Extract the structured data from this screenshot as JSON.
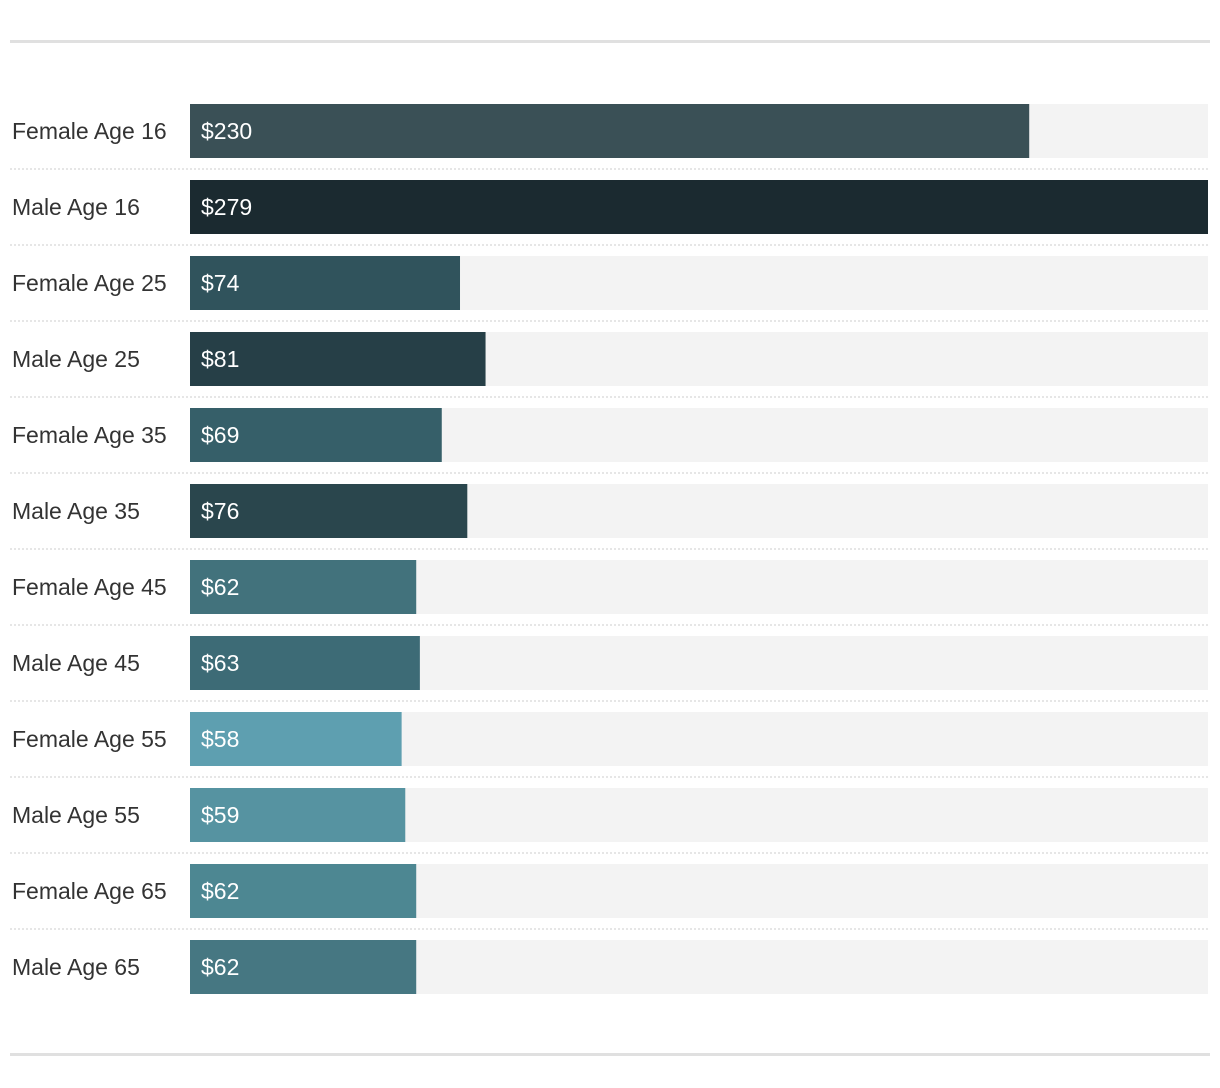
{
  "chart_data": {
    "type": "bar",
    "orientation": "horizontal",
    "categories": [
      "Female Age 16",
      "Male Age 16",
      "Female Age 25",
      "Male Age 25",
      "Female Age 35",
      "Male Age 35",
      "Female Age 45",
      "Male Age 45",
      "Female Age 55",
      "Male Age 55",
      "Female Age 65",
      "Male Age 65"
    ],
    "values": [
      230,
      279,
      74,
      81,
      69,
      76,
      62,
      63,
      58,
      59,
      62,
      62
    ],
    "value_labels": [
      "$230",
      "$279",
      "$74",
      "$81",
      "$69",
      "$76",
      "$62",
      "$63",
      "$58",
      "$59",
      "$62",
      "$62"
    ],
    "xlim": [
      0,
      279
    ],
    "bar_colors": [
      "#3a5056",
      "#1b2a30",
      "#30535c",
      "#263f47",
      "#365f69",
      "#2a464d",
      "#42727c",
      "#3d6b76",
      "#5e9fb0",
      "#5693a1",
      "#4d8792",
      "#467782"
    ],
    "track_color": "#f3f3f3",
    "separator_color": "#cccccc",
    "grid": false,
    "legend": false
  }
}
